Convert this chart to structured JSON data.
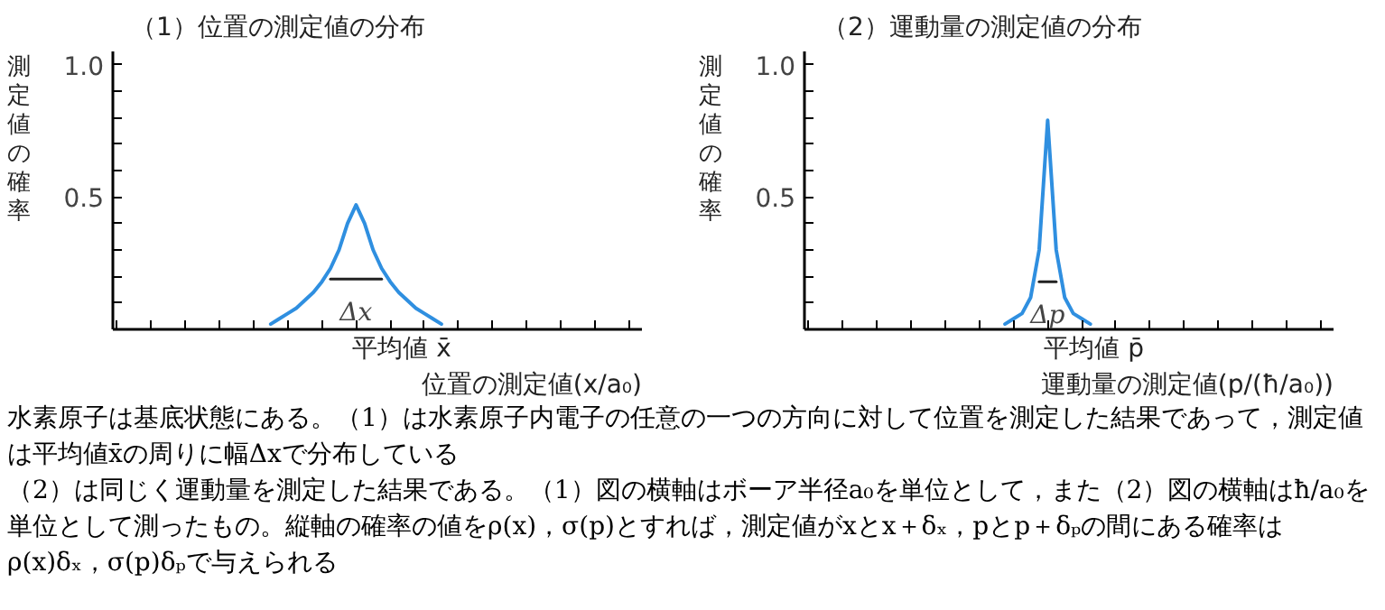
{
  "chart_data": [
    {
      "type": "line",
      "title": "（1）位置の測定値の分布",
      "xlabel": "位置の測定値(x/a₀)",
      "ylabel": "測定値の確率",
      "categories": [
        null,
        null,
        null,
        null,
        null,
        null,
        null,
        null,
        null,
        null,
        null,
        null,
        null,
        null,
        null,
        null,
        null,
        null,
        null,
        null,
        null,
        null,
        null,
        null,
        null,
        null,
        null,
        null,
        null,
        null,
        null,
        null,
        null,
        null,
        null,
        null,
        null,
        null,
        null,
        null,
        null,
        null,
        null,
        null,
        null,
        null,
        null,
        null,
        null,
        null,
        null,
        null,
        null,
        null,
        null,
        null,
        null,
        null,
        null,
        null,
        null,
        null
      ],
      "series": [
        {
          "color": "#2f8fe0",
          "values": [
            null,
            null,
            null,
            null,
            null,
            null,
            null,
            null,
            null,
            null,
            null,
            null,
            null,
            null,
            null,
            null,
            null,
            null,
            0.02,
            0.04,
            0.06,
            0.08,
            0.11,
            0.14,
            0.18,
            0.23,
            0.3,
            0.4,
            0.47,
            0.4,
            0.3,
            0.23,
            0.18,
            0.14,
            0.11,
            0.08,
            0.06,
            0.04,
            0.02,
            null,
            null,
            null,
            null,
            null,
            null,
            null,
            null,
            null,
            null,
            null,
            null,
            null,
            null,
            null,
            null,
            null,
            null,
            null,
            null,
            null,
            null,
            null
          ]
        },
        {
          "color": "#222222",
          "values": [
            null,
            null,
            null,
            null,
            null,
            null,
            null,
            null,
            null,
            null,
            null,
            null,
            null,
            null,
            null,
            null,
            null,
            null,
            null,
            null,
            null,
            null,
            null,
            null,
            null,
            0.19,
            0.19,
            0.19,
            0.19,
            0.19,
            0.19,
            0.19,
            null,
            null,
            null,
            null,
            null,
            null,
            null,
            null,
            null,
            null,
            null,
            null,
            null,
            null,
            null,
            null,
            null,
            null,
            null,
            null,
            null,
            null,
            null,
            null,
            null,
            null,
            null,
            null,
            null,
            null
          ]
        }
      ],
      "ylim": [
        0,
        1.05
      ],
      "yticks": [
        {
          "value": 0.1,
          "label": null
        },
        {
          "value": 0.2,
          "label": null
        },
        {
          "value": 0.3,
          "label": null
        },
        {
          "value": 0.4,
          "label": null
        },
        {
          "value": 0.5,
          "label": "0.5"
        },
        {
          "value": 0.6,
          "label": null
        },
        {
          "value": 0.7,
          "label": null
        },
        {
          "value": 0.8,
          "label": null
        },
        {
          "value": 0.9,
          "label": null
        },
        {
          "value": 1.0,
          "label": "1.0"
        }
      ],
      "tick_labels": "y",
      "annotations": [
        "Δx",
        "平均値 x̄"
      ]
    },
    {
      "type": "line",
      "title": "（2）運動量の測定値の分布",
      "xlabel": "運動量の測定値(p/(ħ/a₀))",
      "ylabel": "測定値の確率",
      "categories": [
        null,
        null,
        null,
        null,
        null,
        null,
        null,
        null,
        null,
        null,
        null,
        null,
        null,
        null,
        null,
        null,
        null,
        null,
        null,
        null,
        null,
        null,
        null,
        null,
        null,
        null,
        null,
        null,
        null,
        null,
        null,
        null,
        null,
        null,
        null,
        null,
        null,
        null,
        null,
        null,
        null,
        null,
        null,
        null,
        null,
        null,
        null,
        null,
        null,
        null,
        null,
        null,
        null,
        null,
        null,
        null,
        null,
        null,
        null,
        null,
        null,
        null
      ],
      "series": [
        {
          "color": "#2f8fe0",
          "values": [
            null,
            null,
            null,
            null,
            null,
            null,
            null,
            null,
            null,
            null,
            null,
            null,
            null,
            null,
            null,
            null,
            null,
            null,
            null,
            null,
            null,
            null,
            null,
            0.02,
            0.04,
            0.06,
            0.12,
            0.3,
            0.79,
            0.3,
            0.12,
            0.06,
            0.04,
            0.02,
            null,
            null,
            null,
            null,
            null,
            null,
            null,
            null,
            null,
            null,
            null,
            null,
            null,
            null,
            null,
            null,
            null,
            null,
            null,
            null,
            null,
            null,
            null,
            null,
            null,
            null,
            null,
            null
          ]
        },
        {
          "color": "#222222",
          "values": [
            null,
            null,
            null,
            null,
            null,
            null,
            null,
            null,
            null,
            null,
            null,
            null,
            null,
            null,
            null,
            null,
            null,
            null,
            null,
            null,
            null,
            null,
            null,
            null,
            null,
            null,
            null,
            0.18,
            0.18,
            0.18,
            null,
            null,
            null,
            null,
            null,
            null,
            null,
            null,
            null,
            null,
            null,
            null,
            null,
            null,
            null,
            null,
            null,
            null,
            null,
            null,
            null,
            null,
            null,
            null,
            null,
            null,
            null,
            null,
            null,
            null,
            null,
            null
          ]
        }
      ],
      "ylim": [
        0,
        1.05
      ],
      "yticks": [
        {
          "value": 0.1,
          "label": null
        },
        {
          "value": 0.2,
          "label": null
        },
        {
          "value": 0.3,
          "label": null
        },
        {
          "value": 0.4,
          "label": null
        },
        {
          "value": 0.5,
          "label": "0.5"
        },
        {
          "value": 0.6,
          "label": null
        },
        {
          "value": 0.7,
          "label": null
        },
        {
          "value": 0.8,
          "label": null
        },
        {
          "value": 0.9,
          "label": null
        },
        {
          "value": 1.0,
          "label": "1.0"
        }
      ],
      "tick_labels": "y",
      "annotations": [
        "Δp",
        "平均値 p̄",
        "水素原子は基底状態にある。（1）は水素原子内電子の任意の一つの方向に対して位置を測定した結果であって，測定値は平均値x̄の周りに幅Δxで分布している",
        "（2）は同じく運動量を測定した結果である。（1）図の横軸はボーア半径a₀を単位として，また（2）図の横軸はħ/a₀を単位として測ったもの。縦軸の確率の値をρ(x)，σ(p)とすれば，測定値がxとx＋δₓ，pとp＋δₚの間にある確率はρ(x)δₓ，σ(p)δₚで与えられる"
      ]
    }
  ]
}
